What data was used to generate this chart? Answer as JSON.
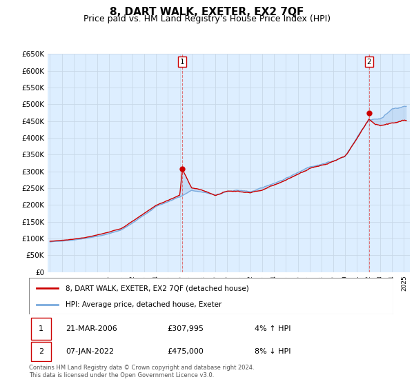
{
  "title": "8, DART WALK, EXETER, EX2 7QF",
  "subtitle": "Price paid vs. HM Land Registry's House Price Index (HPI)",
  "title_fontsize": 11,
  "subtitle_fontsize": 9,
  "ylim": [
    0,
    650000
  ],
  "yticks": [
    0,
    50000,
    100000,
    150000,
    200000,
    250000,
    300000,
    350000,
    400000,
    450000,
    500000,
    550000,
    600000,
    650000
  ],
  "xlim_start": 1994.8,
  "xlim_end": 2025.5,
  "background_color": "#ffffff",
  "plot_bg_color": "#ddeeff",
  "grid_color": "#c8d8e8",
  "line_color_red": "#cc0000",
  "line_color_blue": "#7aaadd",
  "fill_alpha": 0.25,
  "transaction1_x": 2006.22,
  "transaction1_y": 307995,
  "transaction2_x": 2022.03,
  "transaction2_y": 475000,
  "label_red": "8, DART WALK, EXETER, EX2 7QF (detached house)",
  "label_blue": "HPI: Average price, detached house, Exeter",
  "note1_num": "1",
  "note1_date": "21-MAR-2006",
  "note1_price": "£307,995",
  "note1_hpi": "4% ↑ HPI",
  "note2_num": "2",
  "note2_date": "07-JAN-2022",
  "note2_price": "£475,000",
  "note2_hpi": "8% ↓ HPI",
  "footer": "Contains HM Land Registry data © Crown copyright and database right 2024.\nThis data is licensed under the Open Government Licence v3.0."
}
